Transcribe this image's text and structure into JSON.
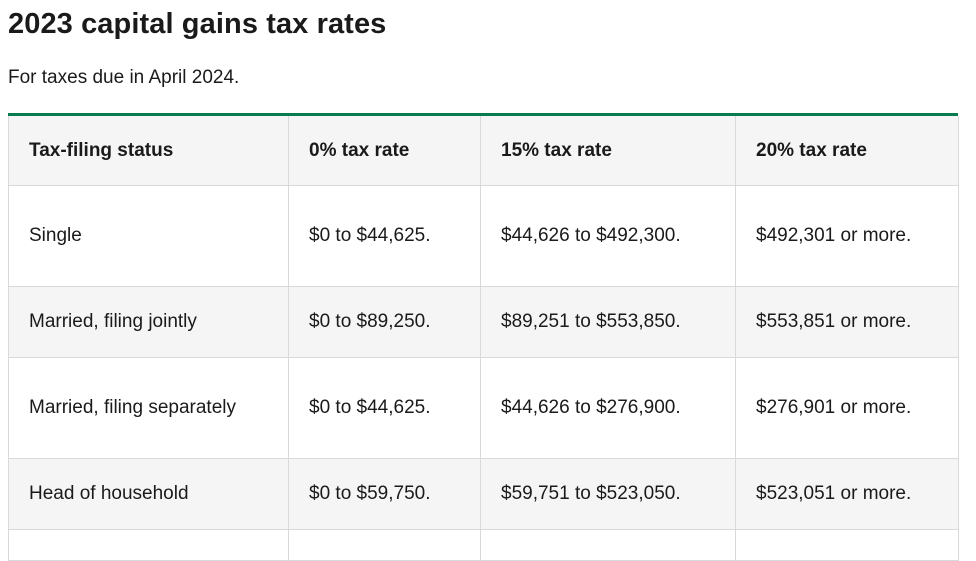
{
  "title": "2023 capital gains tax rates",
  "subtitle": "For taxes due in April 2024.",
  "table": {
    "headers": [
      "Tax-filing status",
      "0% tax rate",
      "15% tax rate",
      "20% tax rate"
    ],
    "rows": [
      [
        "Single",
        "$0 to $44,625.",
        "$44,626 to $492,300.",
        "$492,301 or more."
      ],
      [
        "Married, filing jointly",
        "$0 to $89,250.",
        "$89,251 to $553,850.",
        "$553,851 or more."
      ],
      [
        "Married, filing separately",
        "$0 to $44,625.",
        "$44,626 to $276,900.",
        "$276,901 or more."
      ],
      [
        "Head of household",
        "$0 to $59,750.",
        "$59,751 to $523,050.",
        "$523,051 or more."
      ]
    ]
  },
  "colors": {
    "accent": "#0a7a4f",
    "header_bg": "#f5f5f5",
    "stripe_bg": "#f5f5f5",
    "border": "#d9d9d9"
  }
}
